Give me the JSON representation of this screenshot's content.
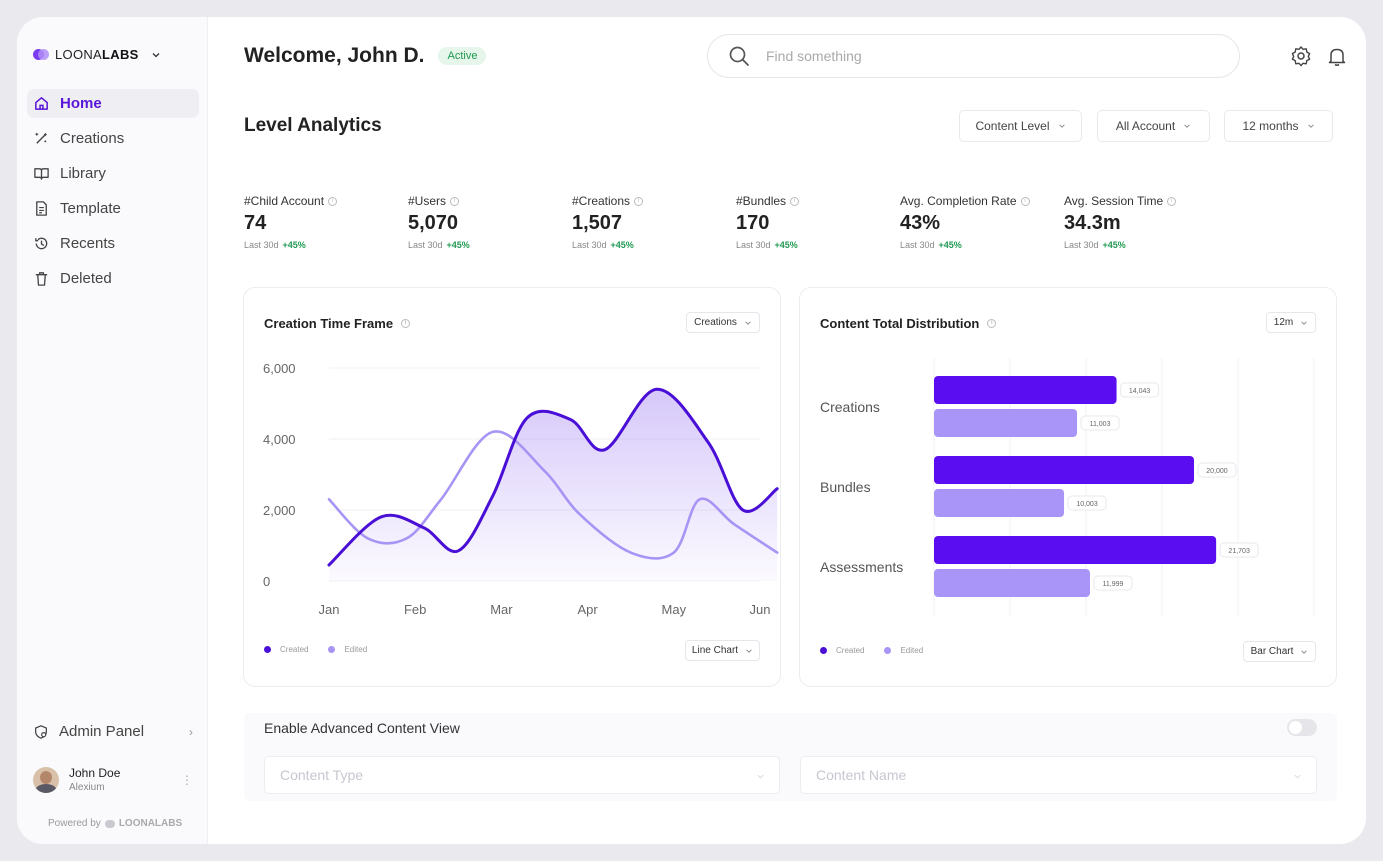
{
  "brand": {
    "name_light": "LOONA",
    "name_bold": "LABS",
    "colors": [
      "#7b3cf0",
      "#b08ef7"
    ]
  },
  "sidebar": {
    "items": [
      {
        "label": "Home",
        "icon": "home-icon",
        "active": true
      },
      {
        "label": "Creations",
        "icon": "magic-wand-icon"
      },
      {
        "label": "Library",
        "icon": "book-icon"
      },
      {
        "label": "Template",
        "icon": "document-icon"
      },
      {
        "label": "Recents",
        "icon": "history-icon"
      },
      {
        "label": "Deleted",
        "icon": "trash-icon"
      }
    ],
    "admin_label": "Admin Panel",
    "user": {
      "name": "John Doe",
      "org": "Alexium"
    },
    "powered_by": "Powered by",
    "powered_brand": "LOONALABS"
  },
  "header": {
    "welcome": "Welcome, John D.",
    "status_badge": "Active",
    "search_placeholder": "Find something"
  },
  "analytics": {
    "title": "Level Analytics",
    "filters": [
      "Content Level",
      "All Account",
      "12 months"
    ],
    "stats": [
      {
        "label": "#Child Account",
        "value": "74",
        "period": "Last 30d",
        "change": "+45%"
      },
      {
        "label": "#Users",
        "value": "5,070",
        "period": "Last 30d",
        "change": "+45%"
      },
      {
        "label": "#Creations",
        "value": "1,507",
        "period": "Last 30d",
        "change": "+45%"
      },
      {
        "label": "#Bundles",
        "value": "170",
        "period": "Last 30d",
        "change": "+45%"
      },
      {
        "label": "Avg. Completion Rate",
        "value": "43%",
        "period": "Last 30d",
        "change": "+45%"
      },
      {
        "label": "Avg. Session Time",
        "value": "34.3m",
        "period": "Last 30d",
        "change": "+45%"
      }
    ]
  },
  "line_card": {
    "title": "Creation Time Frame",
    "dropdown": "Creations",
    "chart_type_dropdown": "Line Chart"
  },
  "bar_card": {
    "title": "Content Total Distribution",
    "dropdown": "12m",
    "chart_type_dropdown": "Bar Chart"
  },
  "advanced": {
    "title": "Enable Advanced Content View",
    "toggle_on": false,
    "content_type_placeholder": "Content Type",
    "content_name_placeholder": "Content Name"
  },
  "colors": {
    "accent": "#5a16d8",
    "created": "#4a0fd6",
    "edited": "#a894f5",
    "bar_created": "#5a0df0",
    "bar_edited": "#a895f7",
    "success": "#1f9a52"
  },
  "chart_data": [
    {
      "type": "line",
      "title": "Creation Time Frame",
      "categories": [
        "Jan",
        "Feb",
        "Mar",
        "Apr",
        "May",
        "Jun"
      ],
      "ylim": [
        0,
        6000
      ],
      "yticks": [
        "6,000",
        "4,000",
        "2,000",
        "0"
      ],
      "grid": true,
      "legend": "bottom-left",
      "series": [
        {
          "name": "Created",
          "x": [
            0,
            0.6,
            1.1,
            1.5,
            1.9,
            2.3,
            2.8,
            3.2,
            3.8,
            4.4,
            4.8,
            5.2
          ],
          "values": [
            450,
            1800,
            1500,
            850,
            2400,
            4600,
            4550,
            3700,
            5400,
            3900,
            2000,
            2600
          ]
        },
        {
          "name": "Edited",
          "x": [
            0,
            0.45,
            0.9,
            1.3,
            1.9,
            2.5,
            2.9,
            3.5,
            4.0,
            4.3,
            4.7,
            5.2
          ],
          "values": [
            2300,
            1200,
            1200,
            2300,
            4200,
            3100,
            1900,
            800,
            800,
            2300,
            1600,
            800
          ]
        }
      ]
    },
    {
      "type": "bar",
      "title": "Content Total Distribution",
      "categories": [
        "Creations",
        "Bundles",
        "Assessments"
      ],
      "orientation": "horizontal",
      "legend": "bottom-left",
      "series": [
        {
          "name": "Created",
          "values": [
            14043,
            20000,
            21703
          ],
          "labels": [
            "14,043",
            "20,000",
            "21,703"
          ]
        },
        {
          "name": "Edited",
          "values": [
            11003,
            10003,
            11999
          ],
          "labels": [
            "11,003",
            "10,003",
            "11,999"
          ]
        }
      ]
    }
  ]
}
